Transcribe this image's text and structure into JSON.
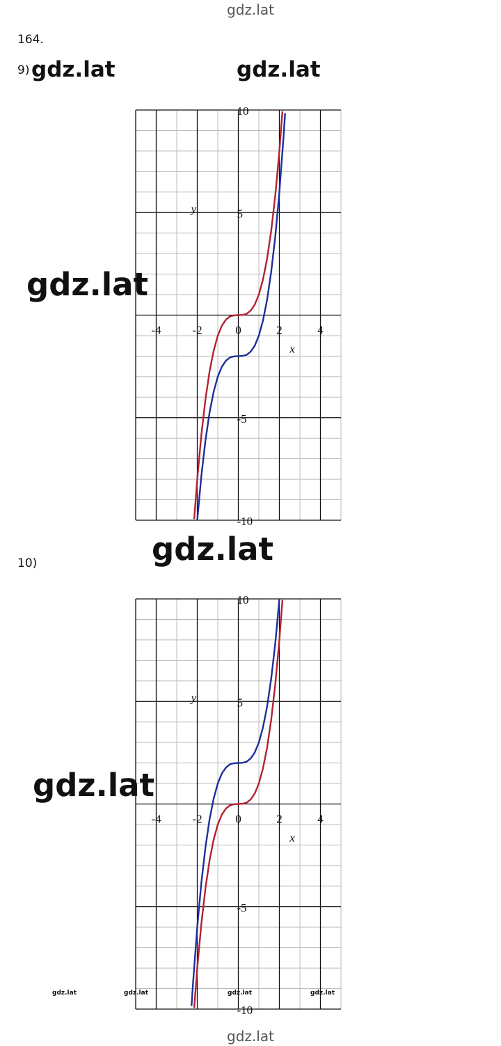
{
  "header": "gdz.lat",
  "problem": "164.",
  "parts": [
    {
      "label": "9)",
      "chart": {
        "type": "line",
        "xlabel": "x",
        "ylabel": "y",
        "xlim": [
          -5,
          5
        ],
        "ylim": [
          -10,
          10
        ],
        "xticks": [
          -4,
          -2,
          0,
          2,
          4
        ],
        "yticks": [
          -10,
          -5,
          5,
          10
        ],
        "major_xgrid": [
          -4,
          -2,
          0,
          2,
          4
        ],
        "major_ygrid": [
          -10,
          -5,
          0,
          5,
          10
        ],
        "minor_xgrid": [
          -5,
          -4,
          -3,
          -2,
          -1,
          0,
          1,
          2,
          3,
          4,
          5
        ],
        "minor_ygrid": [
          -10,
          -9,
          -8,
          -7,
          -6,
          -5,
          -4,
          -3,
          -2,
          -1,
          0,
          1,
          2,
          3,
          4,
          5,
          6,
          7,
          8,
          9,
          10
        ],
        "series": [
          {
            "color": "#b22234",
            "x": [
              -2.15,
              -2,
              -1.8,
              -1.6,
              -1.4,
              -1.2,
              -1,
              -0.8,
              -0.6,
              -0.4,
              -0.2,
              0,
              0.2,
              0.4,
              0.6,
              0.8,
              1,
              1.2,
              1.4,
              1.6,
              1.8,
              2,
              2.15
            ],
            "values": [
              -9.94,
              -8,
              -5.83,
              -4.1,
              -2.74,
              -1.73,
              -1,
              -0.51,
              -0.22,
              -0.06,
              -0.01,
              0,
              0.01,
              0.06,
              0.22,
              0.51,
              1,
              1.73,
              2.74,
              4.1,
              5.83,
              8,
              9.94
            ]
          },
          {
            "color": "#1f2f9a",
            "x": [
              -2,
              -1.8,
              -1.6,
              -1.4,
              -1.2,
              -1,
              -0.8,
              -0.6,
              -0.4,
              -0.2,
              0,
              0.2,
              0.4,
              0.6,
              0.8,
              1,
              1.2,
              1.4,
              1.6,
              1.8,
              2,
              2.2,
              2.28
            ],
            "values": [
              -10,
              -7.83,
              -6.1,
              -4.74,
              -3.73,
              -3,
              -2.51,
              -2.22,
              -2.06,
              -2.01,
              -2,
              -1.99,
              -1.94,
              -1.78,
              -1.49,
              -1,
              -0.27,
              0.74,
              2.1,
              3.83,
              6,
              8.65,
              9.85
            ]
          }
        ]
      }
    },
    {
      "label": "10)",
      "chart": {
        "type": "line",
        "xlabel": "x",
        "ylabel": "y",
        "xlim": [
          -5,
          5
        ],
        "ylim": [
          -10,
          10
        ],
        "xticks": [
          -4,
          -2,
          0,
          2,
          4
        ],
        "yticks": [
          -10,
          -5,
          5,
          10
        ],
        "major_xgrid": [
          -4,
          -2,
          0,
          2,
          4
        ],
        "major_ygrid": [
          -10,
          -5,
          0,
          5,
          10
        ],
        "minor_xgrid": [
          -5,
          -4,
          -3,
          -2,
          -1,
          0,
          1,
          2,
          3,
          4,
          5
        ],
        "minor_ygrid": [
          -10,
          -9,
          -8,
          -7,
          -6,
          -5,
          -4,
          -3,
          -2,
          -1,
          0,
          1,
          2,
          3,
          4,
          5,
          6,
          7,
          8,
          9,
          10
        ],
        "series": [
          {
            "color": "#b22234",
            "x": [
              -2.15,
              -2,
              -1.8,
              -1.6,
              -1.4,
              -1.2,
              -1,
              -0.8,
              -0.6,
              -0.4,
              -0.2,
              0,
              0.2,
              0.4,
              0.6,
              0.8,
              1,
              1.2,
              1.4,
              1.6,
              1.8,
              2,
              2.15
            ],
            "values": [
              -9.94,
              -8,
              -5.83,
              -4.1,
              -2.74,
              -1.73,
              -1,
              -0.51,
              -0.22,
              -0.06,
              -0.01,
              0,
              0.01,
              0.06,
              0.22,
              0.51,
              1,
              1.73,
              2.74,
              4.1,
              5.83,
              8,
              9.94
            ]
          },
          {
            "color": "#1f2f9a",
            "x": [
              -2.28,
              -2.2,
              -2,
              -1.8,
              -1.6,
              -1.4,
              -1.2,
              -1,
              -0.8,
              -0.6,
              -0.4,
              -0.2,
              0,
              0.2,
              0.4,
              0.6,
              0.8,
              1,
              1.2,
              1.4,
              1.6,
              1.8,
              2
            ],
            "values": [
              -9.85,
              -8.65,
              -6,
              -3.83,
              -2.1,
              -0.74,
              0.27,
              1,
              1.49,
              1.78,
              1.94,
              1.99,
              2,
              2.01,
              2.06,
              2.22,
              2.51,
              3,
              3.73,
              4.74,
              6.1,
              7.83,
              10
            ]
          }
        ]
      }
    }
  ],
  "watermarks": [
    "gdz.lat",
    "gdz.lat",
    "gdz.lat",
    "gdz.lat",
    "gdz.lat",
    "gdz.lat",
    "gdz.lat",
    "gdz.lat",
    "gdz.lat"
  ],
  "footer": "gdz.lat"
}
